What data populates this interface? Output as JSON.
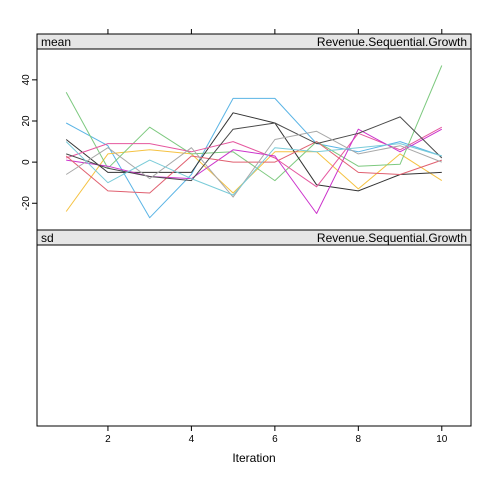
{
  "chart_data": {
    "type": "line",
    "xlabel": "Iteration",
    "x": [
      1,
      2,
      3,
      4,
      5,
      6,
      7,
      8,
      9,
      10
    ],
    "x_ticks": [
      "2",
      "4",
      "6",
      "8",
      "10"
    ],
    "x_tick_values": [
      2,
      4,
      6,
      8,
      10
    ],
    "xlim": [
      0.3,
      10.7
    ],
    "grid": false,
    "panels": [
      {
        "name": "mean",
        "strip_left": "mean",
        "strip_right": "Revenue.Sequential.Growth",
        "ylim": [
          -33,
          55
        ],
        "y_ticks": [
          "-20",
          "0",
          "20",
          "40"
        ],
        "y_tick_values": [
          -20,
          0,
          20,
          40
        ],
        "series": [
          {
            "color": "#5ab4e5",
            "values": [
              19,
              8,
              -27,
              -6,
              31,
              31,
              9,
              5,
              10,
              3
            ]
          },
          {
            "color": "#f5c242",
            "values": [
              -24,
              4,
              6,
              4,
              -15,
              5,
              5,
              -13,
              4,
              -9
            ]
          },
          {
            "color": "#7dc97f",
            "values": [
              34,
              -3,
              17,
              4,
              5,
              -9,
              10,
              -2,
              -1,
              47
            ]
          },
          {
            "color": "#333333",
            "values": [
              11,
              -5,
              -5,
              -5,
              24,
              19,
              -11,
              -14,
              -6,
              -5
            ]
          },
          {
            "color": "#e5579f",
            "values": [
              2,
              9,
              9,
              5,
              10,
              2,
              -12,
              14,
              6,
              17
            ]
          },
          {
            "color": "#cc33cc",
            "values": [
              1,
              -2,
              -7,
              -8,
              6,
              3,
              -25,
              16,
              5,
              16
            ]
          },
          {
            "color": "#e06070",
            "values": [
              3,
              -14,
              -15,
              3,
              0,
              0,
              10,
              -5,
              -6,
              1
            ]
          },
          {
            "color": "#4a4a4a",
            "values": [
              4,
              -3,
              -7,
              -9,
              16,
              19,
              9,
              14,
              22,
              2
            ]
          },
          {
            "color": "#a8a8a8",
            "values": [
              -6,
              7,
              -8,
              7,
              -17,
              11,
              15,
              4,
              8,
              0
            ]
          },
          {
            "color": "#79cbd8",
            "values": [
              10,
              -10,
              1,
              -8,
              -16,
              7,
              5,
              7,
              9,
              3
            ]
          }
        ]
      },
      {
        "name": "sd",
        "strip_left": "sd",
        "strip_right": "Revenue.Sequential.Growth",
        "series": []
      }
    ]
  }
}
